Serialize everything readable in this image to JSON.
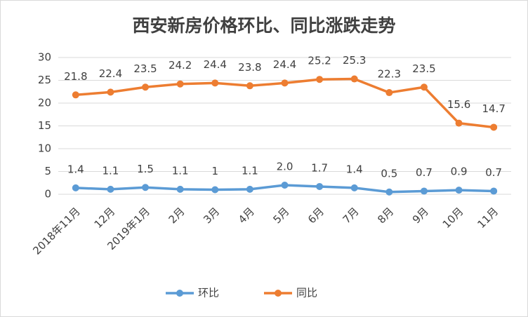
{
  "chart_data": {
    "type": "line",
    "title": "西安新房价格环比、同比涨跌走势",
    "categories": [
      "2018年11月",
      "12月",
      "2019年1月",
      "2月",
      "3月",
      "4月",
      "5月",
      "6月",
      "7月",
      "8月",
      "9月",
      "10月",
      "11月"
    ],
    "series": [
      {
        "name": "环比",
        "color": "#5b9bd5",
        "values": [
          1.4,
          1.1,
          1.5,
          1.1,
          1,
          1.1,
          2.0,
          1.7,
          1.4,
          0.5,
          0.7,
          0.9,
          0.7
        ],
        "value_labels": [
          "1.4",
          "1.1",
          "1.5",
          "1.1",
          "1",
          "1.1",
          "2.0",
          "1.7",
          "1.4",
          "0.5",
          "0.7",
          "0.9",
          "0.7"
        ]
      },
      {
        "name": "同比",
        "color": "#ed7d31",
        "values": [
          21.8,
          22.4,
          23.5,
          24.2,
          24.4,
          23.8,
          24.4,
          25.2,
          25.3,
          22.3,
          23.5,
          15.6,
          14.7
        ]
      }
    ],
    "ylim": [
      0,
      30
    ],
    "yticks": [
      0,
      5,
      10,
      15,
      20,
      25,
      30
    ],
    "grid": true,
    "legend": "bottom"
  }
}
